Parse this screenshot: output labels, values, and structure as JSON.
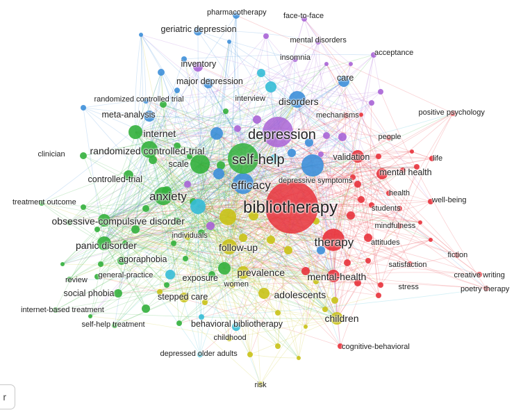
{
  "colors": {
    "red": "#e8323b",
    "green": "#33b03c",
    "blue": "#3d8fd9",
    "purple": "#a964d6",
    "yellow": "#c9c217",
    "cyan": "#35bcd6"
  },
  "corner_button": {
    "label": "r"
  },
  "terms": [
    {
      "id": "bibliotherapy",
      "label": "bibliotherapy",
      "cluster": "red",
      "size": 6
    },
    {
      "id": "depression",
      "label": "depression",
      "cluster": "purple",
      "size": 5
    },
    {
      "id": "self-help",
      "label": "self-help",
      "cluster": "green",
      "size": 5
    },
    {
      "id": "therapy",
      "label": "therapy",
      "cluster": "red",
      "size": 4
    },
    {
      "id": "efficacy",
      "label": "efficacy",
      "cluster": "blue",
      "size": 4
    },
    {
      "id": "anxiety",
      "label": "anxiety",
      "cluster": "green",
      "size": 4
    },
    {
      "id": "disorders",
      "label": "disorders",
      "cluster": "blue",
      "size": 3
    },
    {
      "id": "randomized-controlled-trial",
      "label": "randomized controlled-trial",
      "cluster": "green",
      "size": 3
    },
    {
      "id": "internet",
      "label": "internet",
      "cluster": "green",
      "size": 3
    },
    {
      "id": "obsessive-compulsive-disorder",
      "label": "obsessive-compulsive disorder",
      "cluster": "green",
      "size": 3
    },
    {
      "id": "panic-disorder",
      "label": "panic disorder",
      "cluster": "green",
      "size": 3
    },
    {
      "id": "follow-up",
      "label": "follow-up",
      "cluster": "yellow",
      "size": 3
    },
    {
      "id": "mental-health-hyphen",
      "label": "mental-health",
      "cluster": "red",
      "size": 3
    },
    {
      "id": "adolescents",
      "label": "adolescents",
      "cluster": "yellow",
      "size": 3
    },
    {
      "id": "children",
      "label": "children",
      "cluster": "yellow",
      "size": 3
    },
    {
      "id": "prevalence",
      "label": "prevalence",
      "cluster": "yellow",
      "size": 3
    },
    {
      "id": "validation",
      "label": "validation",
      "cluster": "red",
      "size": 2
    },
    {
      "id": "scale",
      "label": "scale",
      "cluster": "green",
      "size": 2
    },
    {
      "id": "controlled-trial",
      "label": "controlled-trial",
      "cluster": "green",
      "size": 2
    },
    {
      "id": "mental-health",
      "label": "mental health",
      "cluster": "red",
      "size": 2
    },
    {
      "id": "major-depression",
      "label": "major depression",
      "cluster": "blue",
      "size": 2
    },
    {
      "id": "geriatric-depression",
      "label": "geriatric depression",
      "cluster": "blue",
      "size": 2
    },
    {
      "id": "inventory",
      "label": "inventory",
      "cluster": "purple",
      "size": 2
    },
    {
      "id": "meta-analysis",
      "label": "meta-analysis",
      "cluster": "blue",
      "size": 2
    },
    {
      "id": "agoraphobia",
      "label": "agoraphobia",
      "cluster": "green",
      "size": 2
    },
    {
      "id": "social-phobia",
      "label": "social phobia",
      "cluster": "green",
      "size": 2
    },
    {
      "id": "stepped-care",
      "label": "stepped care",
      "cluster": "yellow",
      "size": 2
    },
    {
      "id": "exposure",
      "label": "exposure",
      "cluster": "green",
      "size": 2
    },
    {
      "id": "behavioral-bibliotherapy",
      "label": "behavioral bibliotherapy",
      "cluster": "cyan",
      "size": 2
    },
    {
      "id": "care",
      "label": "care",
      "cluster": "blue",
      "size": 2
    },
    {
      "id": "pharmacotherapy",
      "label": "pharmacotherapy",
      "cluster": "blue",
      "size": 1
    },
    {
      "id": "face-to-face",
      "label": "face-to-face",
      "cluster": "purple",
      "size": 1
    },
    {
      "id": "mental-disorders",
      "label": "mental disorders",
      "cluster": "purple",
      "size": 1
    },
    {
      "id": "acceptance",
      "label": "acceptance",
      "cluster": "purple",
      "size": 1
    },
    {
      "id": "insomnia",
      "label": "insomnia",
      "cluster": "purple",
      "size": 1
    },
    {
      "id": "randomized-controlled-trial-2",
      "label": "randomized controlled trial",
      "cluster": "blue",
      "size": 1
    },
    {
      "id": "interview",
      "label": "interview",
      "cluster": "cyan",
      "size": 1
    },
    {
      "id": "mechanisms",
      "label": "mechanisms",
      "cluster": "red",
      "size": 1
    },
    {
      "id": "positive-psychology",
      "label": "positive psychology",
      "cluster": "red",
      "size": 1
    },
    {
      "id": "people",
      "label": "people",
      "cluster": "red",
      "size": 1
    },
    {
      "id": "life",
      "label": "life",
      "cluster": "red",
      "size": 1
    },
    {
      "id": "clinician",
      "label": "clinician",
      "cluster": "green",
      "size": 1
    },
    {
      "id": "depressive-symptoms",
      "label": "depressive symptoms",
      "cluster": "blue",
      "size": 1
    },
    {
      "id": "health",
      "label": "health",
      "cluster": "red",
      "size": 1
    },
    {
      "id": "well-being",
      "label": "well-being",
      "cluster": "red",
      "size": 1
    },
    {
      "id": "treatment-outcome",
      "label": "treatment outcome",
      "cluster": "green",
      "size": 1
    },
    {
      "id": "students",
      "label": "students",
      "cluster": "red",
      "size": 1
    },
    {
      "id": "mindfulness",
      "label": "mindfulness",
      "cluster": "red",
      "size": 1
    },
    {
      "id": "individuals",
      "label": "individuals",
      "cluster": "yellow",
      "size": 1
    },
    {
      "id": "attitudes",
      "label": "attitudes",
      "cluster": "red",
      "size": 1
    },
    {
      "id": "fiction",
      "label": "fiction",
      "cluster": "red",
      "size": 1
    },
    {
      "id": "satisfaction",
      "label": "satisfaction",
      "cluster": "red",
      "size": 1
    },
    {
      "id": "creative-writing",
      "label": "creative writing",
      "cluster": "red",
      "size": 1
    },
    {
      "id": "review",
      "label": "review",
      "cluster": "green",
      "size": 1
    },
    {
      "id": "general-practice",
      "label": "general-practice",
      "cluster": "green",
      "size": 1
    },
    {
      "id": "women",
      "label": "women",
      "cluster": "yellow",
      "size": 1
    },
    {
      "id": "stress",
      "label": "stress",
      "cluster": "red",
      "size": 1
    },
    {
      "id": "poetry-therapy",
      "label": "poetry therapy",
      "cluster": "red",
      "size": 1
    },
    {
      "id": "internet-based-treatment",
      "label": "internet-based treatment",
      "cluster": "green",
      "size": 1
    },
    {
      "id": "self-help-treatment",
      "label": "self-help treatment",
      "cluster": "green",
      "size": 1
    },
    {
      "id": "childhood",
      "label": "childhood",
      "cluster": "yellow",
      "size": 1
    },
    {
      "id": "cognitive-behavioral",
      "label": "cognitive-behavioral",
      "cluster": "red",
      "size": 1
    },
    {
      "id": "depressed-older-adults",
      "label": "depressed older adults",
      "cluster": "cyan",
      "size": 1
    },
    {
      "id": "risk",
      "label": "risk",
      "cluster": "yellow",
      "size": 1
    }
  ]
}
